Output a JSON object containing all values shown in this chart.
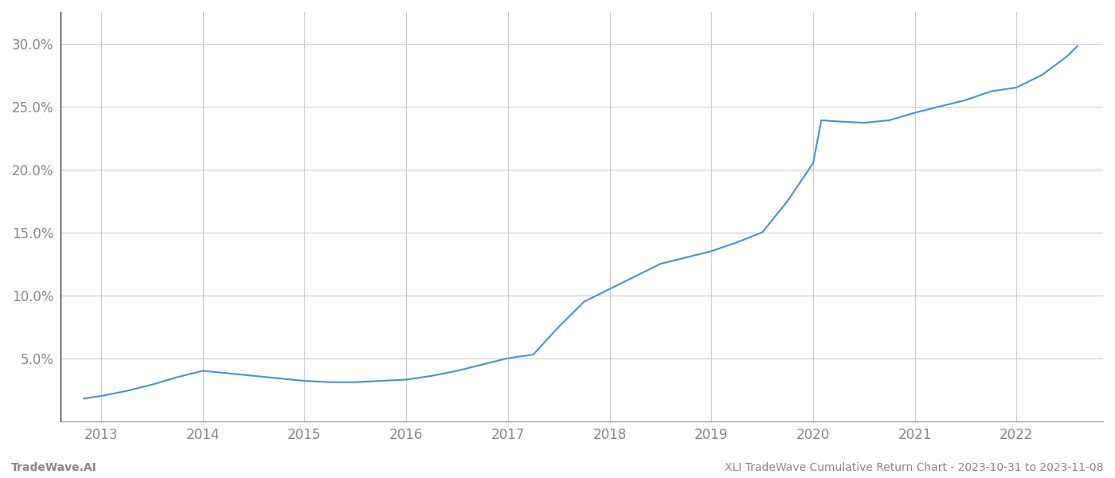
{
  "x_years": [
    2013,
    2014,
    2015,
    2016,
    2017,
    2018,
    2019,
    2020,
    2021,
    2022
  ],
  "x_data": [
    2012.83,
    2013.0,
    2013.25,
    2013.5,
    2013.75,
    2014.0,
    2014.25,
    2014.5,
    2014.75,
    2015.0,
    2015.25,
    2015.5,
    2015.75,
    2016.0,
    2016.25,
    2016.5,
    2016.75,
    2017.0,
    2017.08,
    2017.17,
    2017.25,
    2017.5,
    2017.75,
    2018.0,
    2018.25,
    2018.5,
    2018.75,
    2019.0,
    2019.25,
    2019.5,
    2019.75,
    2020.0,
    2020.08,
    2020.25,
    2020.5,
    2020.75,
    2021.0,
    2021.25,
    2021.5,
    2021.75,
    2022.0,
    2022.25,
    2022.5,
    2022.6
  ],
  "y_data": [
    1.8,
    2.0,
    2.4,
    2.9,
    3.5,
    4.0,
    3.8,
    3.6,
    3.4,
    3.2,
    3.1,
    3.1,
    3.2,
    3.3,
    3.6,
    4.0,
    4.5,
    5.0,
    5.1,
    5.2,
    5.3,
    7.5,
    9.5,
    10.5,
    11.5,
    12.5,
    13.0,
    13.5,
    14.2,
    15.0,
    17.5,
    20.5,
    23.9,
    23.8,
    23.7,
    23.9,
    24.5,
    25.0,
    25.5,
    26.2,
    26.5,
    27.5,
    29.0,
    29.8
  ],
  "line_color": "#4a90d9",
  "line_width": 1.5,
  "background_color": "#ffffff",
  "grid_color": "#cccccc",
  "ytick_labels": [
    "5.0%",
    "10.0%",
    "15.0%",
    "20.0%",
    "25.0%",
    "30.0%"
  ],
  "ytick_values": [
    5.0,
    10.0,
    15.0,
    20.0,
    25.0,
    30.0
  ],
  "ylim": [
    0.0,
    32.5
  ],
  "xlim": [
    2012.6,
    2022.85
  ],
  "footer_left": "TradeWave.AI",
  "footer_right": "XLI TradeWave Cumulative Return Chart - 2023-10-31 to 2023-11-08",
  "footer_color": "#888888",
  "footer_fontsize": 10,
  "tick_label_color": "#888888",
  "tick_fontsize": 12,
  "spine_color": "#888888",
  "left_spine_color": "#333333"
}
